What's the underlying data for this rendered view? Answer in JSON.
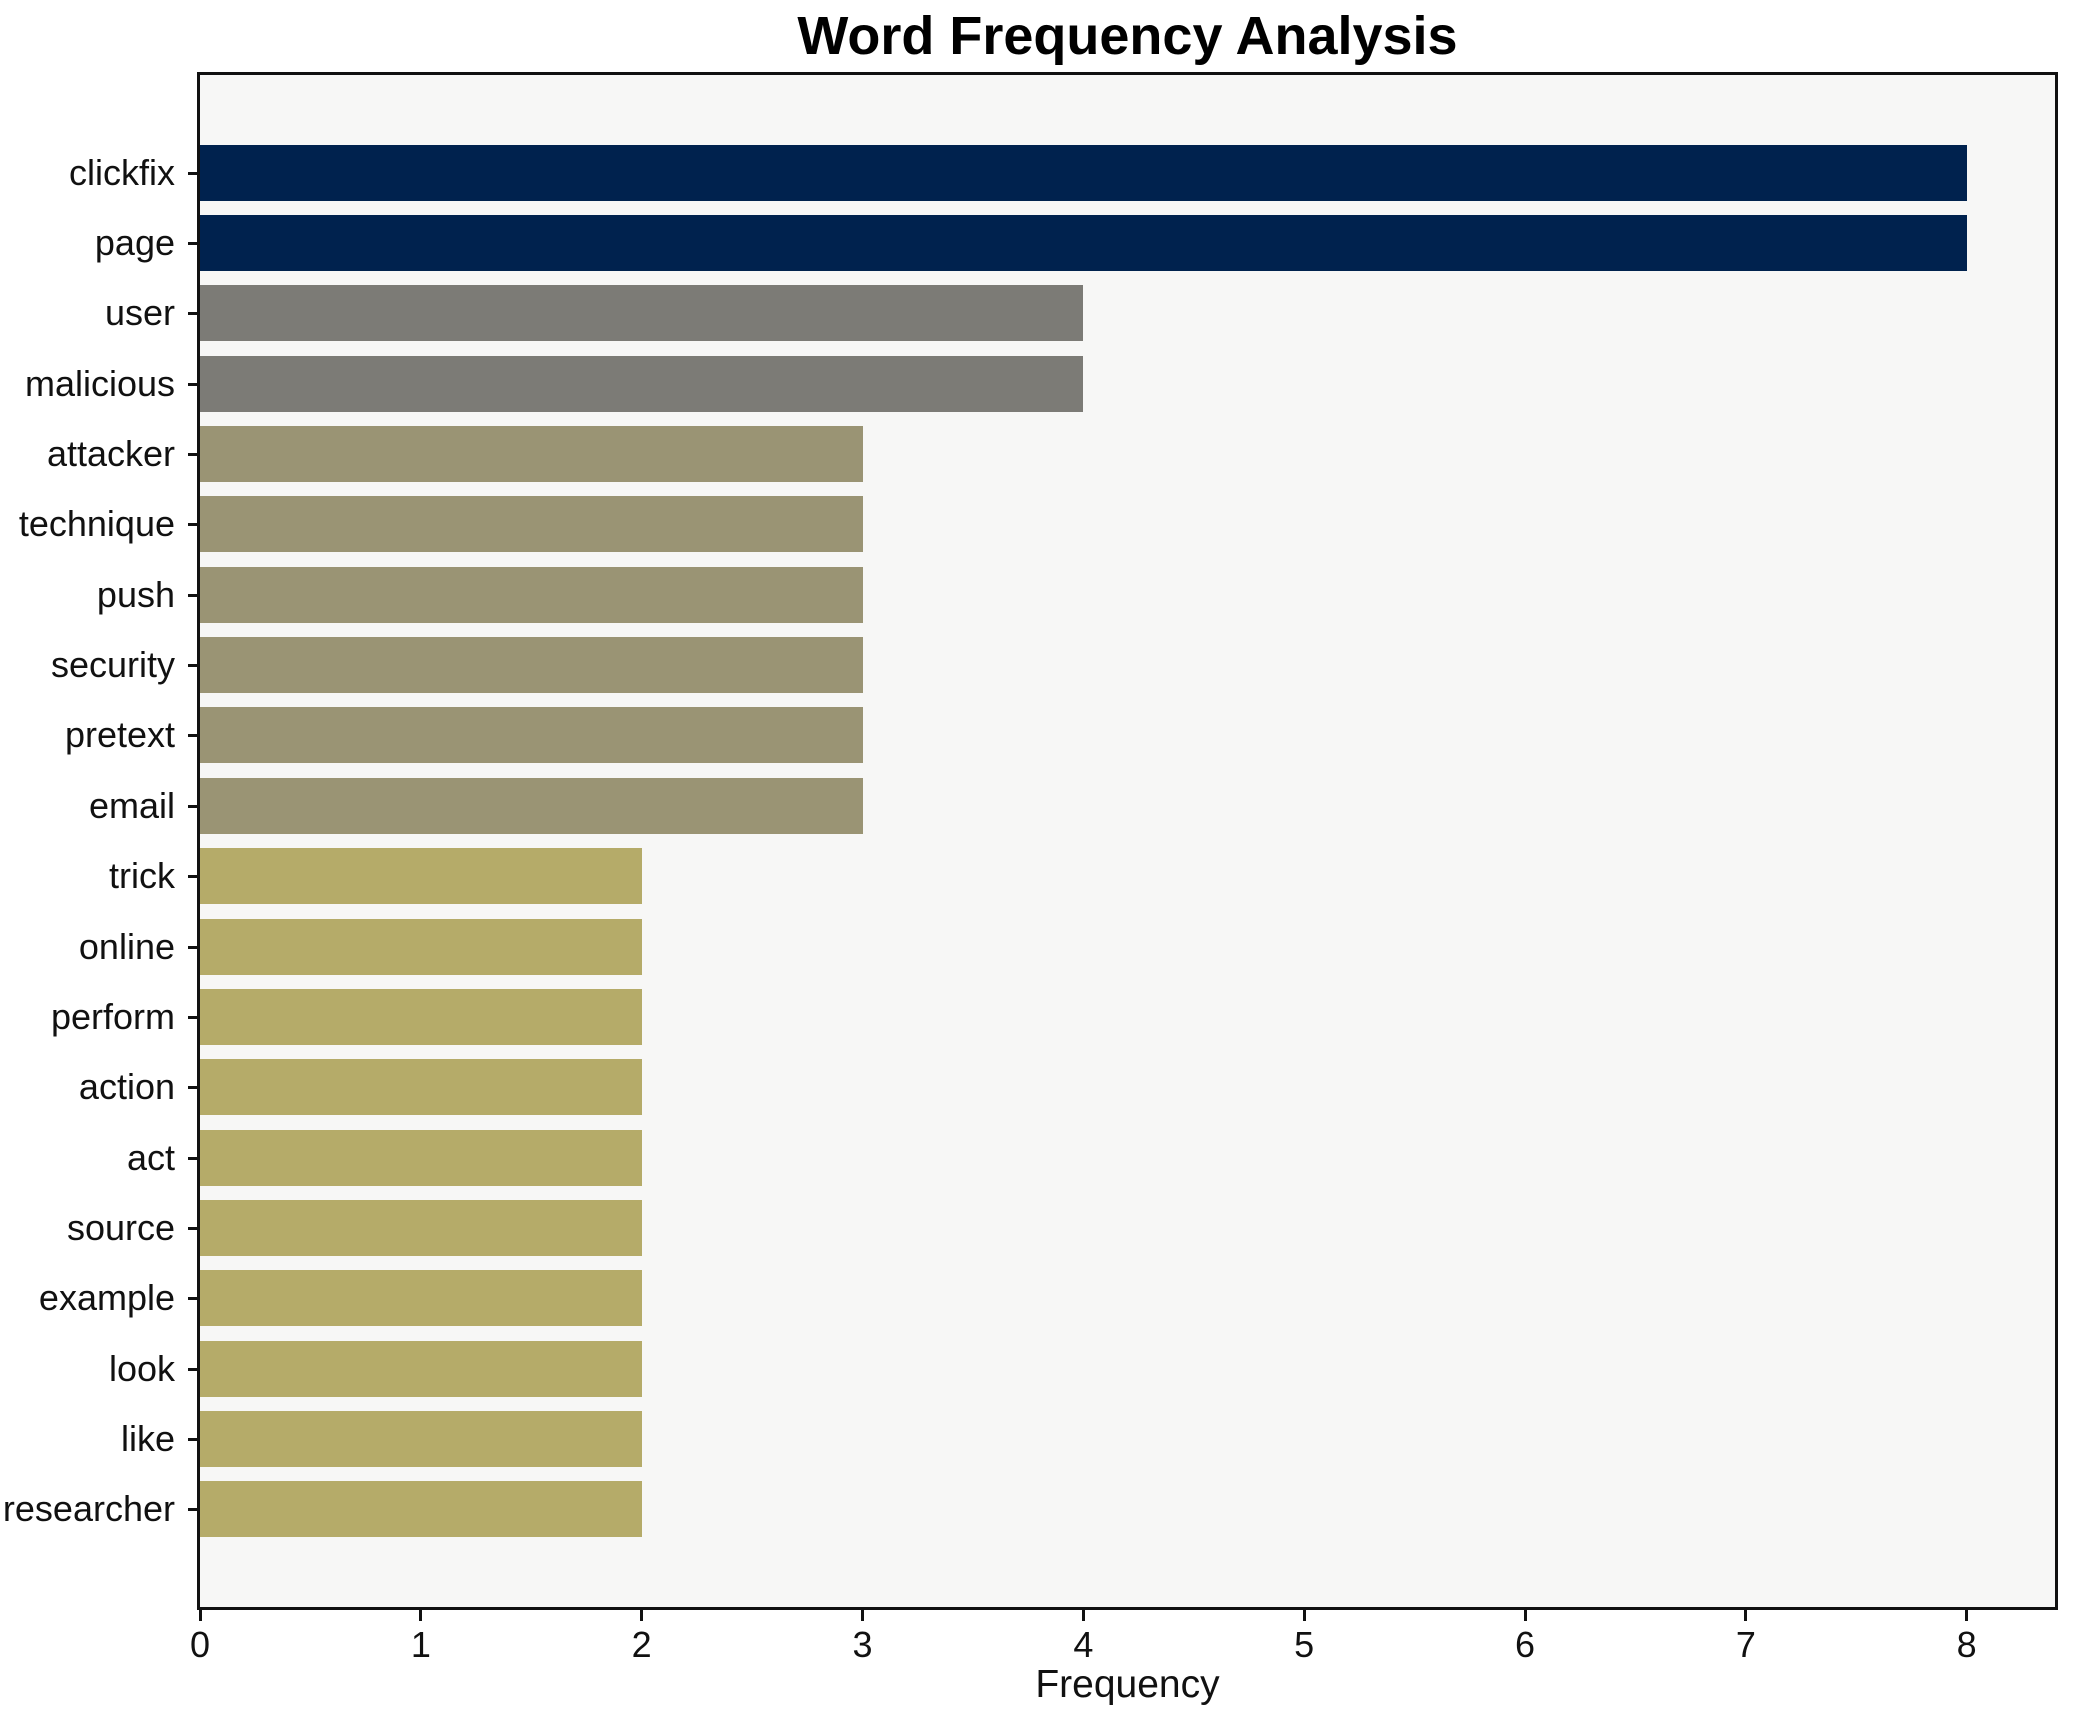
{
  "chart_data": {
    "type": "bar",
    "orientation": "horizontal",
    "title": "Word Frequency Analysis",
    "xlabel": "Frequency",
    "ylabel": "",
    "categories": [
      "clickfix",
      "page",
      "user",
      "malicious",
      "attacker",
      "technique",
      "push",
      "security",
      "pretext",
      "email",
      "trick",
      "online",
      "perform",
      "action",
      "act",
      "source",
      "example",
      "look",
      "like",
      "researcher"
    ],
    "values": [
      8,
      8,
      4,
      4,
      3,
      3,
      3,
      3,
      3,
      3,
      2,
      2,
      2,
      2,
      2,
      2,
      2,
      2,
      2,
      2
    ],
    "bar_colors": [
      "#00224e",
      "#00224e",
      "#7c7b76",
      "#7c7b76",
      "#9a9474",
      "#9a9474",
      "#9a9474",
      "#9a9474",
      "#9a9474",
      "#9a9474",
      "#b5ab69",
      "#b5ab69",
      "#b5ab69",
      "#b5ab69",
      "#b5ab69",
      "#b5ab69",
      "#b5ab69",
      "#b5ab69",
      "#b5ab69",
      "#b5ab69"
    ],
    "palette_by_value": {
      "8": "#00224e",
      "4": "#7c7b76",
      "3": "#9a9474",
      "2": "#b5ab69"
    },
    "x_ticks": [
      0,
      1,
      2,
      3,
      4,
      5,
      6,
      7,
      8
    ],
    "xlim": [
      0,
      8.4
    ],
    "grid": false,
    "legend": false,
    "plot_background": "#f7f7f6",
    "figure_background": "#ffffff",
    "spine_color": "#111111",
    "title_color": "#000000"
  }
}
